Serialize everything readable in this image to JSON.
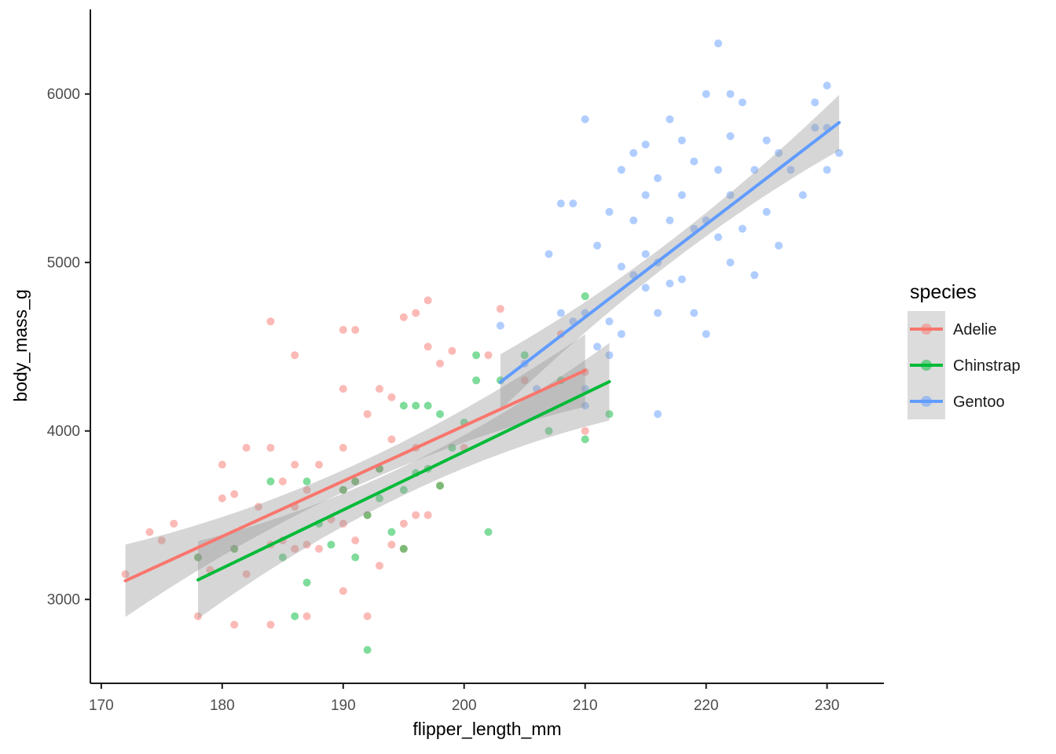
{
  "chart_data": {
    "type": "scatter",
    "title": "",
    "xlabel": "flipper_length_mm",
    "ylabel": "body_mass_g",
    "x_ticks": [
      170,
      180,
      190,
      200,
      210,
      220,
      230
    ],
    "y_ticks": [
      3000,
      4000,
      5000,
      6000
    ],
    "xlim": [
      169.1,
      234.7
    ],
    "ylim": [
      2502,
      6502
    ],
    "grid": "off",
    "background": "#ffffff",
    "axis_color": "#1a1a1a",
    "tick_label_color": "#4d4d4d",
    "band_color": "#999999",
    "band_opacity": 0.4,
    "point_opacity": 0.5,
    "legend": {
      "title": "species",
      "position": "right",
      "key_background": "#dcdcdc"
    },
    "series": [
      {
        "name": "Adelie",
        "color": "#F8766D",
        "trend": {
          "x": [
            172,
            210
          ],
          "y": [
            3111,
            4359
          ]
        },
        "ci_halfwidth": {
          "end": 215,
          "mid": 65
        },
        "points": [
          [
            172,
            3150
          ],
          [
            174,
            3400
          ],
          [
            175,
            3350
          ],
          [
            176,
            3450
          ],
          [
            178,
            2900
          ],
          [
            178,
            3250
          ],
          [
            179,
            3175
          ],
          [
            180,
            3600
          ],
          [
            180,
            3800
          ],
          [
            181,
            2850
          ],
          [
            181,
            3300
          ],
          [
            181,
            3625
          ],
          [
            182,
            3150
          ],
          [
            182,
            3900
          ],
          [
            183,
            3550
          ],
          [
            184,
            2850
          ],
          [
            184,
            3325
          ],
          [
            184,
            3900
          ],
          [
            184,
            4650
          ],
          [
            185,
            3350
          ],
          [
            185,
            3700
          ],
          [
            186,
            3300
          ],
          [
            186,
            3550
          ],
          [
            186,
            3800
          ],
          [
            186,
            4450
          ],
          [
            187,
            2900
          ],
          [
            187,
            3325
          ],
          [
            187,
            3650
          ],
          [
            188,
            3300
          ],
          [
            188,
            3800
          ],
          [
            189,
            3475
          ],
          [
            190,
            3050
          ],
          [
            190,
            3450
          ],
          [
            190,
            3650
          ],
          [
            190,
            3900
          ],
          [
            190,
            4250
          ],
          [
            190,
            4600
          ],
          [
            191,
            3350
          ],
          [
            191,
            3700
          ],
          [
            191,
            4600
          ],
          [
            192,
            2900
          ],
          [
            192,
            3500
          ],
          [
            192,
            4100
          ],
          [
            193,
            3200
          ],
          [
            193,
            3775
          ],
          [
            193,
            4250
          ],
          [
            194,
            3325
          ],
          [
            194,
            3950
          ],
          [
            194,
            4200
          ],
          [
            195,
            3300
          ],
          [
            195,
            3450
          ],
          [
            195,
            4675
          ],
          [
            196,
            3500
          ],
          [
            196,
            3900
          ],
          [
            196,
            4700
          ],
          [
            197,
            3500
          ],
          [
            197,
            4500
          ],
          [
            197,
            4775
          ],
          [
            198,
            3675
          ],
          [
            198,
            4400
          ],
          [
            199,
            4475
          ],
          [
            200,
            3900
          ],
          [
            202,
            4450
          ],
          [
            203,
            4725
          ],
          [
            205,
            4300
          ],
          [
            208,
            4575
          ],
          [
            210,
            4000
          ],
          [
            210,
            4350
          ]
        ]
      },
      {
        "name": "Chinstrap",
        "color": "#00BA38",
        "trend": {
          "x": [
            178,
            212
          ],
          "y": [
            3116,
            4292
          ]
        },
        "ci_halfwidth": {
          "end": 230,
          "mid": 85
        },
        "points": [
          [
            178,
            3250
          ],
          [
            181,
            3300
          ],
          [
            184,
            3700
          ],
          [
            185,
            3250
          ],
          [
            186,
            2900
          ],
          [
            187,
            3100
          ],
          [
            187,
            3700
          ],
          [
            188,
            3450
          ],
          [
            189,
            3325
          ],
          [
            190,
            3650
          ],
          [
            191,
            3250
          ],
          [
            191,
            3700
          ],
          [
            192,
            2700
          ],
          [
            192,
            3500
          ],
          [
            193,
            3600
          ],
          [
            193,
            3775
          ],
          [
            194,
            3400
          ],
          [
            195,
            3300
          ],
          [
            195,
            3650
          ],
          [
            195,
            4150
          ],
          [
            196,
            3750
          ],
          [
            196,
            4150
          ],
          [
            197,
            3775
          ],
          [
            197,
            4150
          ],
          [
            198,
            3675
          ],
          [
            198,
            4100
          ],
          [
            199,
            3900
          ],
          [
            200,
            4050
          ],
          [
            201,
            4300
          ],
          [
            201,
            4450
          ],
          [
            202,
            3400
          ],
          [
            203,
            4300
          ],
          [
            205,
            4450
          ],
          [
            207,
            4000
          ],
          [
            208,
            4300
          ],
          [
            210,
            3950
          ],
          [
            210,
            4800
          ],
          [
            212,
            4100
          ]
        ]
      },
      {
        "name": "Gentoo",
        "color": "#619CFF",
        "trend": {
          "x": [
            203,
            231
          ],
          "y": [
            4290,
            5830
          ]
        },
        "ci_halfwidth": {
          "end": 165,
          "mid": 65
        },
        "points": [
          [
            203,
            4625
          ],
          [
            205,
            4400
          ],
          [
            206,
            4250
          ],
          [
            207,
            5050
          ],
          [
            208,
            4700
          ],
          [
            208,
            5350
          ],
          [
            209,
            4650
          ],
          [
            209,
            5350
          ],
          [
            210,
            4150
          ],
          [
            210,
            4250
          ],
          [
            210,
            4700
          ],
          [
            210,
            5850
          ],
          [
            211,
            4500
          ],
          [
            211,
            5100
          ],
          [
            212,
            4450
          ],
          [
            212,
            4650
          ],
          [
            212,
            5300
          ],
          [
            213,
            4575
          ],
          [
            213,
            4975
          ],
          [
            213,
            5550
          ],
          [
            214,
            4925
          ],
          [
            214,
            5250
          ],
          [
            214,
            5650
          ],
          [
            215,
            4850
          ],
          [
            215,
            5050
          ],
          [
            215,
            5400
          ],
          [
            215,
            5700
          ],
          [
            216,
            4100
          ],
          [
            216,
            4700
          ],
          [
            216,
            5000
          ],
          [
            216,
            5500
          ],
          [
            217,
            4875
          ],
          [
            217,
            5250
          ],
          [
            217,
            5850
          ],
          [
            218,
            4900
          ],
          [
            218,
            5400
          ],
          [
            218,
            5725
          ],
          [
            219,
            4700
          ],
          [
            219,
            5200
          ],
          [
            219,
            5600
          ],
          [
            220,
            4575
          ],
          [
            220,
            5250
          ],
          [
            220,
            6000
          ],
          [
            221,
            5150
          ],
          [
            221,
            5550
          ],
          [
            221,
            6300
          ],
          [
            222,
            5000
          ],
          [
            222,
            5400
          ],
          [
            222,
            5750
          ],
          [
            222,
            6000
          ],
          [
            223,
            5200
          ],
          [
            223,
            5950
          ],
          [
            224,
            4925
          ],
          [
            224,
            5550
          ],
          [
            225,
            5300
          ],
          [
            225,
            5725
          ],
          [
            226,
            5100
          ],
          [
            226,
            5650
          ],
          [
            227,
            5550
          ],
          [
            228,
            5400
          ],
          [
            229,
            5800
          ],
          [
            229,
            5950
          ],
          [
            230,
            5550
          ],
          [
            230,
            5800
          ],
          [
            230,
            6050
          ],
          [
            231,
            5650
          ]
        ]
      }
    ]
  }
}
